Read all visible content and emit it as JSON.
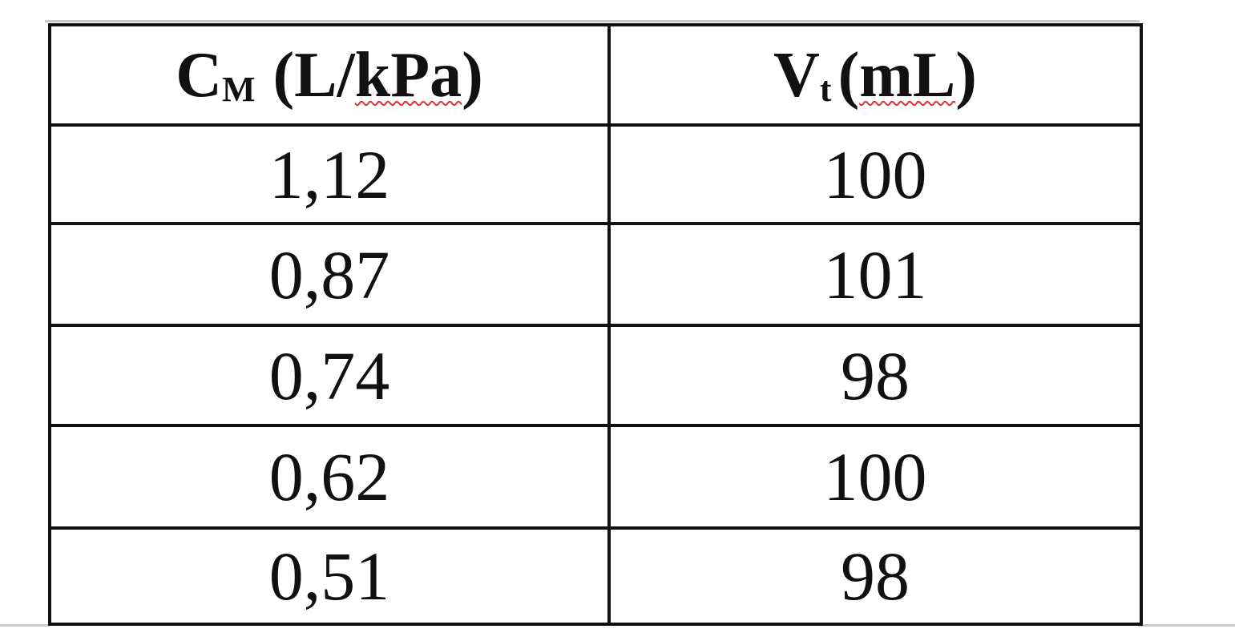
{
  "table": {
    "header": [
      {
        "symbol": "C",
        "subscript": "M",
        "open": "(L/",
        "unit": "kPa",
        "close": ")"
      },
      {
        "symbol": "V",
        "subscript": "t",
        "open": "(",
        "unit": "mL",
        "close": ")"
      }
    ],
    "rows": [
      [
        "1,12",
        "100"
      ],
      [
        "0,87",
        "101"
      ],
      [
        "0,74",
        "98"
      ],
      [
        "0,62",
        "100"
      ],
      [
        "0,51",
        "98"
      ]
    ]
  }
}
